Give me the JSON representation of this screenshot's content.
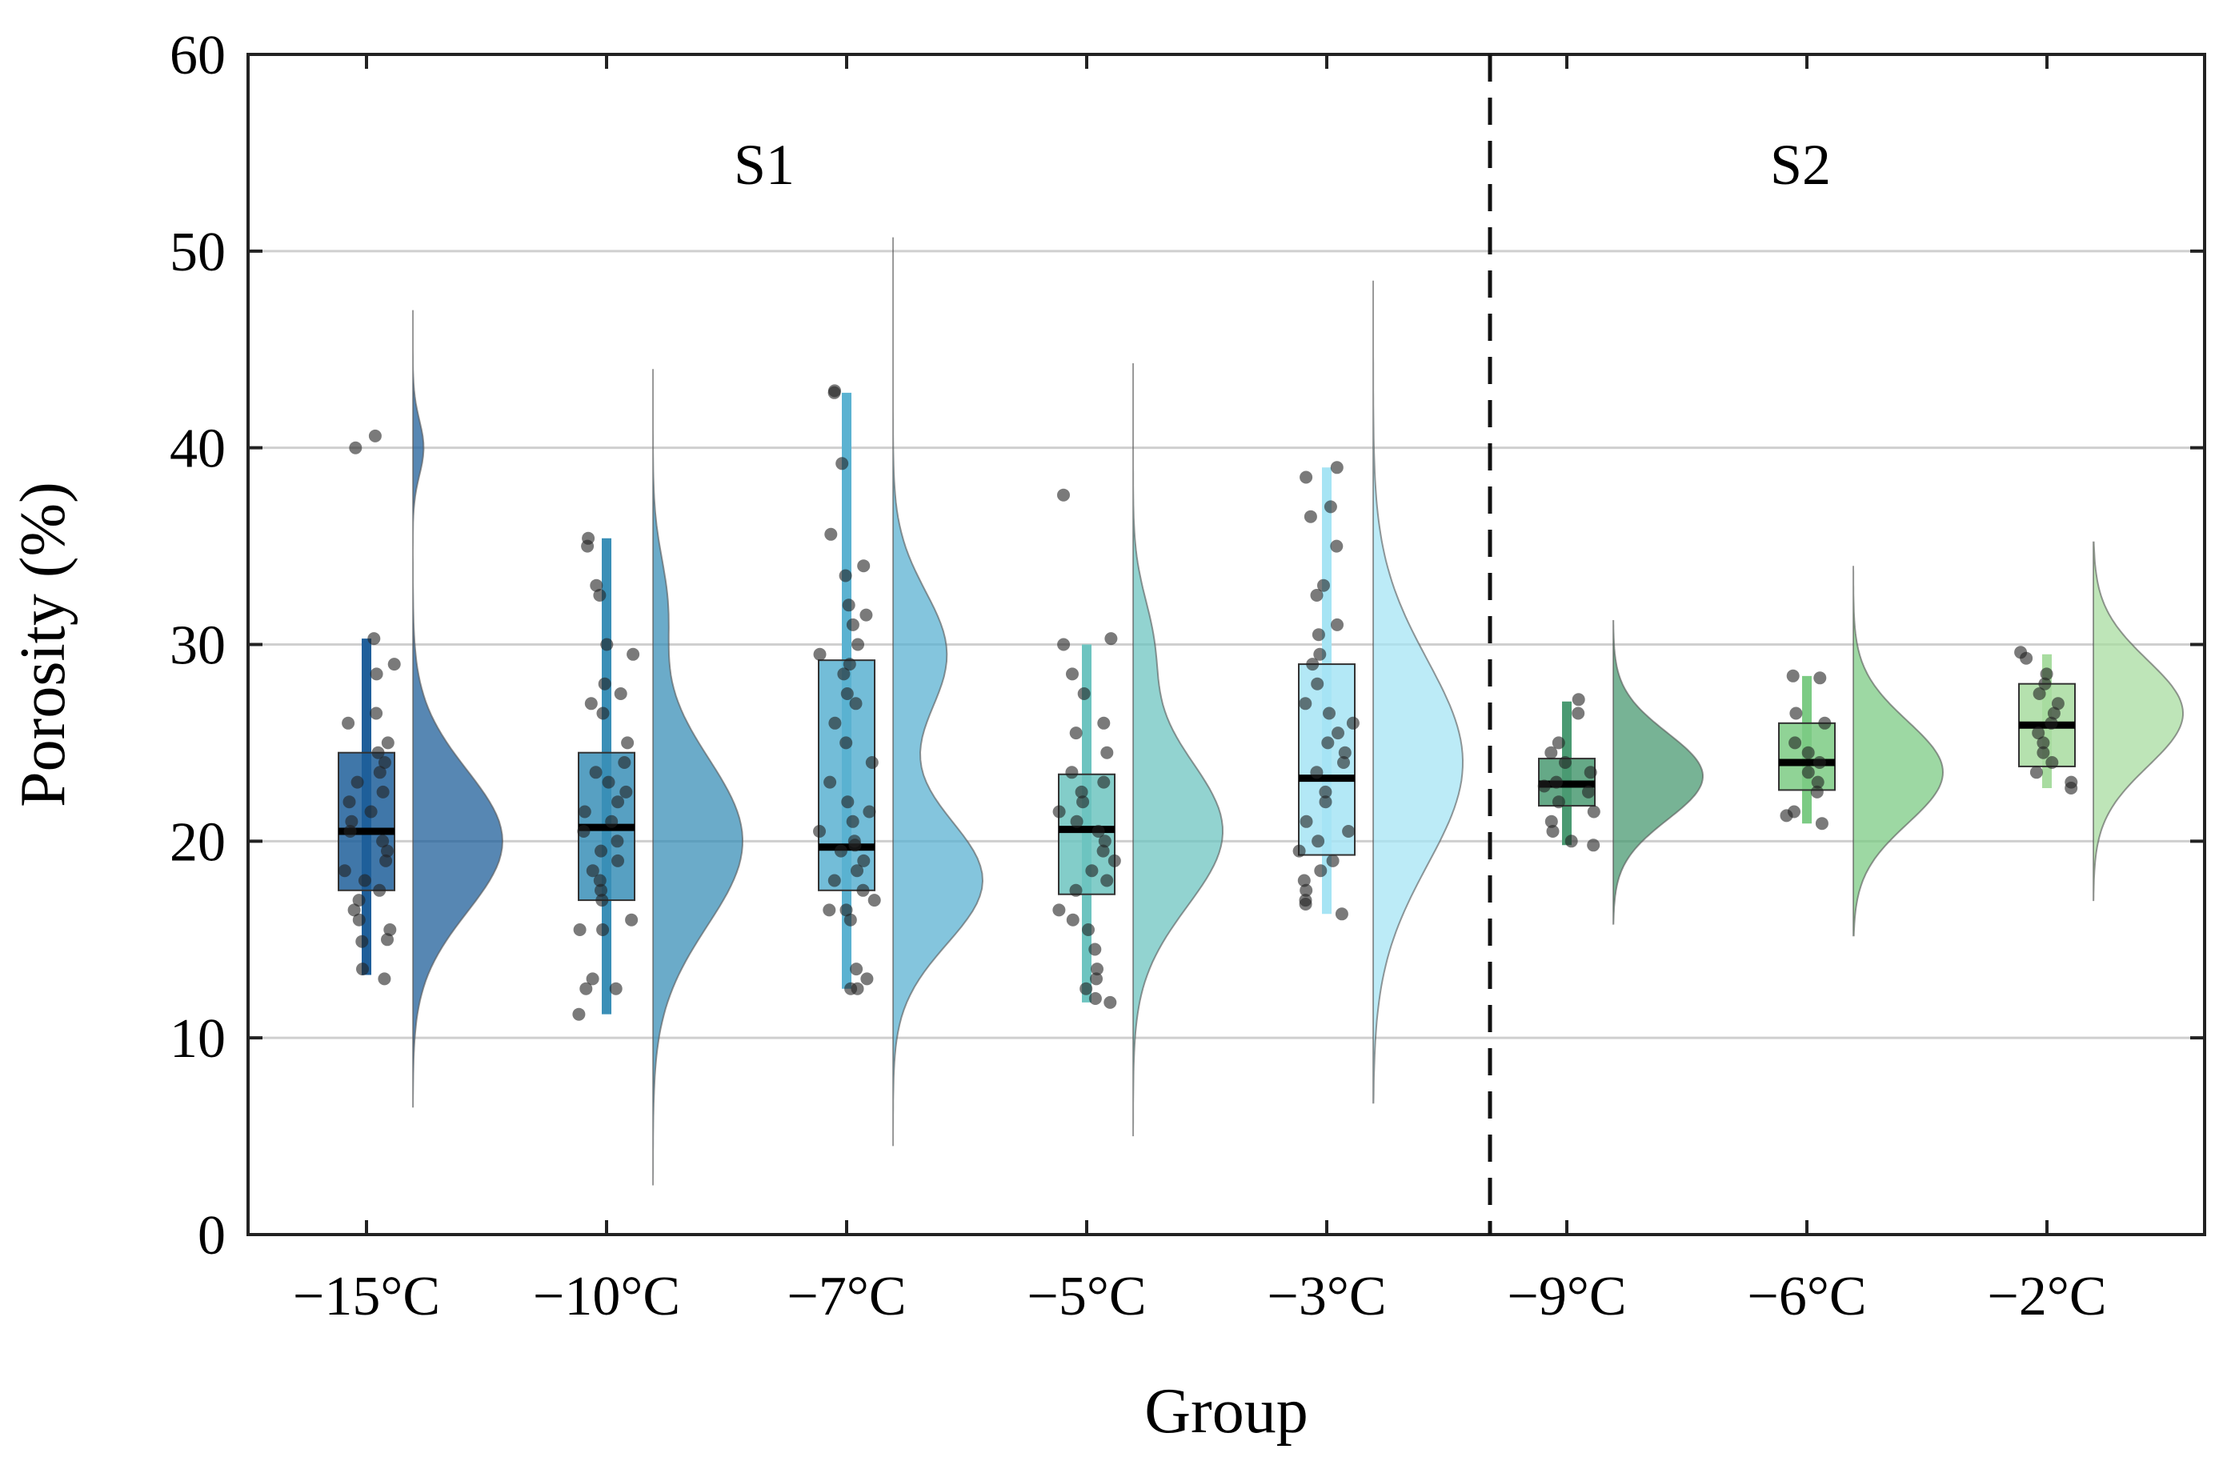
{
  "chart_data": {
    "type": "raincloud",
    "title": "",
    "xlabel": "Group",
    "ylabel": "Porosity (%)",
    "ylim": [
      0,
      60
    ],
    "yticks": [
      0,
      10,
      20,
      30,
      40,
      50,
      60
    ],
    "ytick_labels": [
      "0",
      "10",
      "20",
      "30",
      "40",
      "50",
      "60"
    ],
    "grid": "horizontal",
    "sections": [
      {
        "label": "S1",
        "groups": [
          0,
          1,
          2,
          3,
          4
        ]
      },
      {
        "label": "S2",
        "groups": [
          5,
          6,
          7
        ]
      }
    ],
    "divider_after_group": 4,
    "groups": [
      {
        "label": "−15°C",
        "color": "#1f5f9a",
        "box": {
          "q1": 17.5,
          "median": 20.5,
          "q3": 24.5,
          "whisker_low": 13.2,
          "whisker_high": 30.3
        },
        "density": {
          "min": 6.5,
          "max": 47.0,
          "modes": [
            {
              "mu": 20.0,
              "sigma": 3.6,
              "w": 1.0
            },
            {
              "mu": 40.0,
              "sigma": 1.4,
              "w": 0.12
            }
          ]
        },
        "points": [
          40.6,
          40.0,
          30.3,
          29.0,
          28.5,
          26.5,
          26.0,
          25.0,
          24.5,
          24.0,
          23.5,
          23.0,
          22.5,
          22.0,
          21.5,
          21.0,
          20.5,
          20.0,
          19.5,
          19.0,
          18.5,
          18.0,
          17.5,
          17.0,
          16.5,
          16.0,
          15.5,
          15.0,
          14.9,
          13.5,
          13.0
        ]
      },
      {
        "label": "−10°C",
        "color": "#3a8fb7",
        "box": {
          "q1": 17.0,
          "median": 20.7,
          "q3": 24.5,
          "whisker_low": 11.2,
          "whisker_high": 35.4
        },
        "density": {
          "min": 2.5,
          "max": 44.0,
          "modes": [
            {
              "mu": 20.0,
              "sigma": 4.3,
              "w": 1.0
            },
            {
              "mu": 32.0,
              "sigma": 2.5,
              "w": 0.15
            }
          ]
        },
        "points": [
          35.4,
          35.0,
          33.0,
          32.5,
          30.0,
          29.5,
          28.0,
          27.5,
          27.0,
          26.5,
          25.0,
          24.0,
          23.5,
          23.0,
          22.5,
          22.0,
          21.5,
          21.0,
          20.5,
          20.0,
          19.5,
          19.0,
          18.5,
          18.0,
          17.5,
          17.0,
          16.0,
          15.5,
          15.5,
          13.0,
          12.5,
          12.5,
          11.2
        ]
      },
      {
        "label": "−7°C",
        "color": "#5bb2d1",
        "box": {
          "q1": 17.5,
          "median": 19.7,
          "q3": 29.2,
          "whisker_low": 12.5,
          "whisker_high": 42.8
        },
        "density": {
          "min": 4.5,
          "max": 50.7,
          "modes": [
            {
              "mu": 18.0,
              "sigma": 3.2,
              "w": 1.0
            },
            {
              "mu": 29.5,
              "sigma": 3.2,
              "w": 0.6
            }
          ]
        },
        "points": [
          42.9,
          42.8,
          39.2,
          35.6,
          34.0,
          33.5,
          32.0,
          31.5,
          31.0,
          30.0,
          29.5,
          29.0,
          28.5,
          27.5,
          27.0,
          26.0,
          25.0,
          24.0,
          23.0,
          22.0,
          21.5,
          21.0,
          20.5,
          20.0,
          19.8,
          19.5,
          19.0,
          18.5,
          18.0,
          17.5,
          17.0,
          16.5,
          16.5,
          16.0,
          13.5,
          13.0,
          12.5,
          12.5
        ]
      },
      {
        "label": "−5°C",
        "color": "#6dc4c0",
        "box": {
          "q1": 17.3,
          "median": 20.6,
          "q3": 23.4,
          "whisker_low": 11.8,
          "whisker_high": 30.0
        },
        "density": {
          "min": 5.0,
          "max": 44.3,
          "modes": [
            {
              "mu": 20.5,
              "sigma": 3.8,
              "w": 1.0
            },
            {
              "mu": 30.0,
              "sigma": 2.5,
              "w": 0.2
            }
          ]
        },
        "points": [
          37.6,
          30.3,
          30.0,
          28.5,
          27.5,
          26.0,
          25.5,
          24.5,
          23.5,
          23.0,
          22.5,
          22.0,
          21.5,
          21.0,
          20.5,
          20.0,
          19.5,
          19.0,
          18.5,
          18.0,
          17.5,
          16.5,
          16.0,
          15.5,
          14.5,
          13.5,
          13.0,
          12.5,
          12.0,
          11.8
        ]
      },
      {
        "label": "−3°C",
        "color": "#a6e4f4",
        "box": {
          "q1": 19.3,
          "median": 23.2,
          "q3": 29.0,
          "whisker_low": 16.3,
          "whisker_high": 39.0
        },
        "density": {
          "min": 6.7,
          "max": 48.5,
          "modes": [
            {
              "mu": 24.0,
              "sigma": 5.2,
              "w": 1.0
            }
          ]
        },
        "points": [
          39.0,
          38.5,
          37.0,
          36.5,
          35.0,
          33.0,
          32.5,
          31.0,
          30.5,
          29.5,
          29.0,
          28.0,
          27.0,
          26.5,
          26.0,
          25.5,
          25.0,
          24.5,
          24.0,
          23.5,
          22.5,
          22.0,
          21.0,
          20.5,
          20.0,
          19.5,
          19.0,
          18.5,
          18.0,
          17.5,
          17.0,
          16.8,
          16.3
        ]
      },
      {
        "label": "−9°C",
        "color": "#4a9a72",
        "box": {
          "q1": 21.8,
          "median": 22.9,
          "q3": 24.2,
          "whisker_low": 19.8,
          "whisker_high": 27.1
        },
        "density": {
          "min": 15.8,
          "max": 31.2,
          "modes": [
            {
              "mu": 23.3,
              "sigma": 2.2,
              "w": 1.0
            }
          ]
        },
        "points": [
          27.2,
          26.5,
          25.0,
          24.5,
          24.0,
          23.5,
          23.0,
          22.8,
          22.5,
          22.0,
          21.5,
          21.0,
          20.5,
          20.0,
          19.8
        ]
      },
      {
        "label": "−6°C",
        "color": "#7ccb84",
        "box": {
          "q1": 22.6,
          "median": 24.0,
          "q3": 26.0,
          "whisker_low": 20.9,
          "whisker_high": 28.4
        },
        "density": {
          "min": 15.2,
          "max": 34.0,
          "modes": [
            {
              "mu": 23.5,
              "sigma": 2.6,
              "w": 1.0
            }
          ]
        },
        "points": [
          28.4,
          28.3,
          26.5,
          26.0,
          25.0,
          24.5,
          24.0,
          23.5,
          23.0,
          22.5,
          21.5,
          21.3,
          20.9
        ]
      },
      {
        "label": "−2°C",
        "color": "#a8dca0",
        "box": {
          "q1": 23.8,
          "median": 25.9,
          "q3": 28.0,
          "whisker_low": 22.7,
          "whisker_high": 29.5
        },
        "density": {
          "min": 17.0,
          "max": 35.2,
          "modes": [
            {
              "mu": 26.5,
              "sigma": 2.7,
              "w": 1.0
            }
          ]
        },
        "points": [
          29.6,
          29.3,
          28.5,
          28.0,
          27.5,
          27.0,
          26.5,
          26.0,
          25.5,
          25.0,
          24.5,
          24.0,
          23.5,
          23.0,
          22.7
        ]
      }
    ]
  }
}
